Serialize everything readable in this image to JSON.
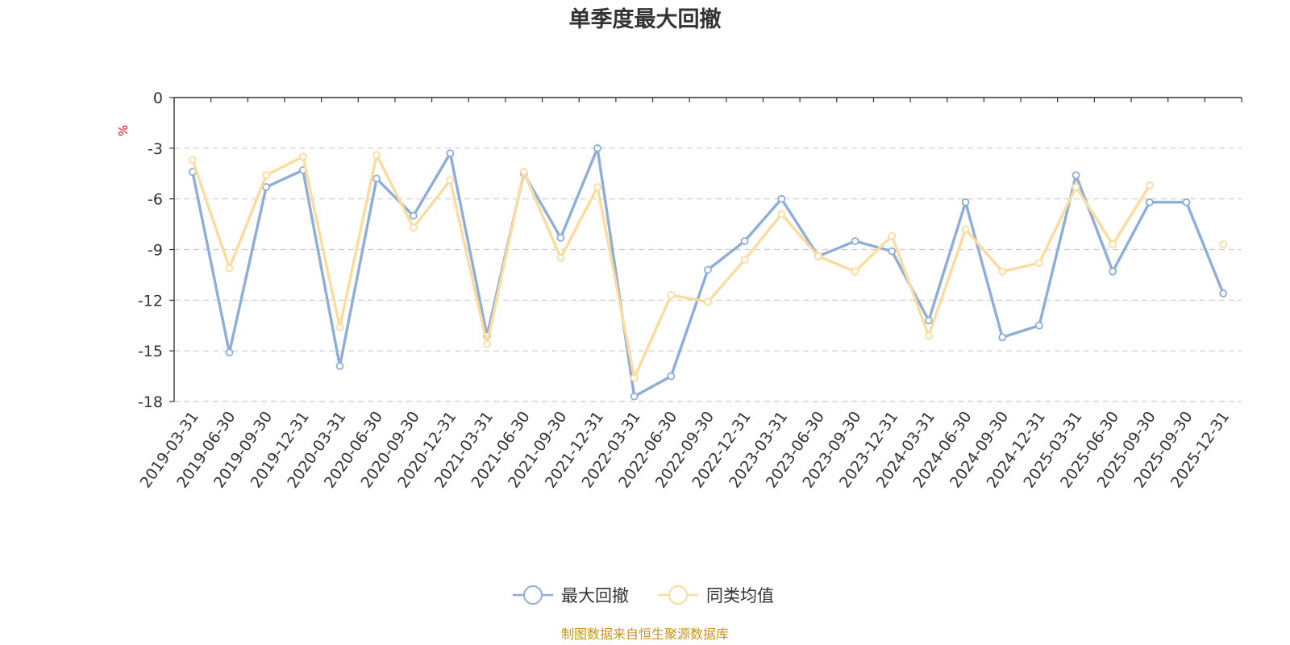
{
  "chart_data": {
    "type": "line",
    "title": "单季度最大回撤",
    "ylabel": "%",
    "ylim": [
      -18,
      0
    ],
    "yticks": [
      "0",
      "-3",
      "-6",
      "-9",
      "-12",
      "-15",
      "-18"
    ],
    "grid": true,
    "legend_position": "bottom-center",
    "categories": [
      "2019-03-31",
      "2019-06-30",
      "2019-09-30",
      "2019-12-31",
      "2020-03-31",
      "2020-06-30",
      "2020-09-30",
      "2020-12-31",
      "2021-03-31",
      "2021-06-30",
      "2021-09-30",
      "2021-12-31",
      "2022-03-31",
      "2022-06-30",
      "2022-09-30",
      "2022-12-31",
      "2023-03-31",
      "2023-06-30",
      "2023-09-30",
      "2023-12-31",
      "2024-03-31",
      "2024-06-30",
      "2024-09-30",
      "2024-12-31",
      "2025-03-31",
      "2025-06-30",
      "2025-09-30",
      "2025-09-30",
      "2025-12-31"
    ],
    "series": [
      {
        "name": "最大回撤",
        "color": "#8eadd8",
        "values": [
          -4.4,
          -15.1,
          -5.3,
          -4.3,
          -15.9,
          -4.8,
          -7.0,
          -3.3,
          -14.1,
          -4.5,
          -8.3,
          -3.0,
          -17.7,
          -16.5,
          -10.2,
          -8.5,
          -6.0,
          -9.4,
          -8.5,
          -9.1,
          -13.2,
          -6.2,
          -14.2,
          -13.5,
          -4.6,
          -10.3,
          -6.2,
          -6.2,
          -11.6
        ]
      },
      {
        "name": "同类均值",
        "color": "#fbdc9e",
        "values": [
          -3.7,
          -10.1,
          -4.6,
          -3.5,
          -13.6,
          -3.4,
          -7.7,
          -4.9,
          -14.6,
          -4.4,
          -9.5,
          -5.3,
          -16.6,
          -11.7,
          -12.1,
          -9.6,
          -6.9,
          -9.4,
          -10.3,
          -8.2,
          -14.1,
          -7.8,
          -10.3,
          -9.8,
          -5.3,
          -8.7,
          -5.2,
          null,
          -8.7
        ]
      }
    ]
  },
  "footer": {
    "source_text": "制图数据来自恒生聚源数据库"
  }
}
